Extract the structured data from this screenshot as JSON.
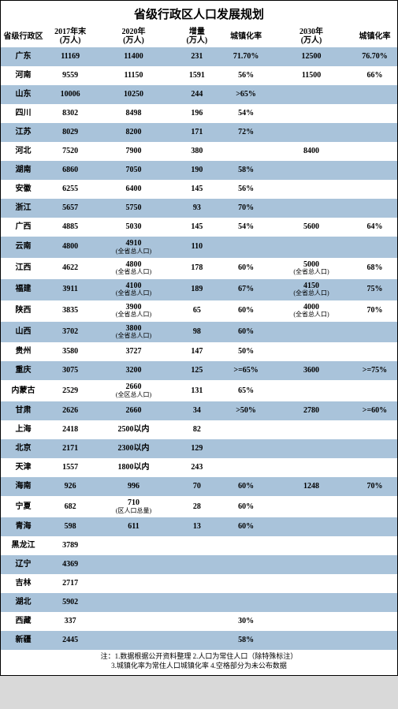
{
  "title": "省级行政区人口发展规划",
  "columns": [
    "省级行政区",
    "2017年末\n(万人)",
    "2020年\n(万人)",
    "增量\n(万人)",
    "城镇化率",
    "2030年\n(万人)",
    "城镇化率"
  ],
  "sub_note": "(全省总人口)",
  "sub_note_district": "(区人口总量)",
  "rows": [
    {
      "r": "广东",
      "c1": "11169",
      "c2": "11400",
      "c2s": "",
      "c3": "231",
      "c4": "71.70%",
      "c5": "12500",
      "c5s": "",
      "c6": "76.70%"
    },
    {
      "r": "河南",
      "c1": "9559",
      "c2": "11150",
      "c2s": "",
      "c3": "1591",
      "c4": "56%",
      "c5": "11500",
      "c5s": "",
      "c6": "66%"
    },
    {
      "r": "山东",
      "c1": "10006",
      "c2": "10250",
      "c2s": "",
      "c3": "244",
      "c4": ">65%",
      "c5": "",
      "c5s": "",
      "c6": ""
    },
    {
      "r": "四川",
      "c1": "8302",
      "c2": "8498",
      "c2s": "",
      "c3": "196",
      "c4": "54%",
      "c5": "",
      "c5s": "",
      "c6": ""
    },
    {
      "r": "江苏",
      "c1": "8029",
      "c2": "8200",
      "c2s": "",
      "c3": "171",
      "c4": "72%",
      "c5": "",
      "c5s": "",
      "c6": ""
    },
    {
      "r": "河北",
      "c1": "7520",
      "c2": "7900",
      "c2s": "",
      "c3": "380",
      "c4": "",
      "c5": "8400",
      "c5s": "",
      "c6": ""
    },
    {
      "r": "湖南",
      "c1": "6860",
      "c2": "7050",
      "c2s": "",
      "c3": "190",
      "c4": "58%",
      "c5": "",
      "c5s": "",
      "c6": ""
    },
    {
      "r": "安徽",
      "c1": "6255",
      "c2": "6400",
      "c2s": "",
      "c3": "145",
      "c4": "56%",
      "c5": "",
      "c5s": "",
      "c6": ""
    },
    {
      "r": "浙江",
      "c1": "5657",
      "c2": "5750",
      "c2s": "",
      "c3": "93",
      "c4": "70%",
      "c5": "",
      "c5s": "",
      "c6": ""
    },
    {
      "r": "广西",
      "c1": "4885",
      "c2": "5030",
      "c2s": "",
      "c3": "145",
      "c4": "54%",
      "c5": "5600",
      "c5s": "",
      "c6": "64%"
    },
    {
      "r": "云南",
      "c1": "4800",
      "c2": "4910",
      "c2s": "(全省总人口)",
      "c3": "110",
      "c4": "",
      "c5": "",
      "c5s": "",
      "c6": ""
    },
    {
      "r": "江西",
      "c1": "4622",
      "c2": "4800",
      "c2s": "(全省总人口)",
      "c3": "178",
      "c4": "60%",
      "c5": "5000",
      "c5s": "(全省总人口)",
      "c6": "68%"
    },
    {
      "r": "福建",
      "c1": "3911",
      "c2": "4100",
      "c2s": "(全省总人口)",
      "c3": "189",
      "c4": "67%",
      "c5": "4150",
      "c5s": "(全省总人口)",
      "c6": "75%"
    },
    {
      "r": "陕西",
      "c1": "3835",
      "c2": "3900",
      "c2s": "(全省总人口)",
      "c3": "65",
      "c4": "60%",
      "c5": "4000",
      "c5s": "(全省总人口)",
      "c6": "70%"
    },
    {
      "r": "山西",
      "c1": "3702",
      "c2": "3800",
      "c2s": "(全省总人口)",
      "c3": "98",
      "c4": "60%",
      "c5": "",
      "c5s": "",
      "c6": ""
    },
    {
      "r": "贵州",
      "c1": "3580",
      "c2": "3727",
      "c2s": "",
      "c3": "147",
      "c4": "50%",
      "c5": "",
      "c5s": "",
      "c6": ""
    },
    {
      "r": "重庆",
      "c1": "3075",
      "c2": "3200",
      "c2s": "",
      "c3": "125",
      "c4": ">=65%",
      "c5": "3600",
      "c5s": "",
      "c6": ">=75%"
    },
    {
      "r": "内蒙古",
      "c1": "2529",
      "c2": "2660",
      "c2s": "(全区总人口)",
      "c3": "131",
      "c4": "65%",
      "c5": "",
      "c5s": "",
      "c6": ""
    },
    {
      "r": "甘肃",
      "c1": "2626",
      "c2": "2660",
      "c2s": "",
      "c3": "34",
      "c4": ">50%",
      "c5": "2780",
      "c5s": "",
      "c6": ">=60%"
    },
    {
      "r": "上海",
      "c1": "2418",
      "c2": "2500以内",
      "c2s": "",
      "c3": "82",
      "c4": "",
      "c5": "",
      "c5s": "",
      "c6": ""
    },
    {
      "r": "北京",
      "c1": "2171",
      "c2": "2300以内",
      "c2s": "",
      "c3": "129",
      "c4": "",
      "c5": "",
      "c5s": "",
      "c6": ""
    },
    {
      "r": "天津",
      "c1": "1557",
      "c2": "1800以内",
      "c2s": "",
      "c3": "243",
      "c4": "",
      "c5": "",
      "c5s": "",
      "c6": ""
    },
    {
      "r": "海南",
      "c1": "926",
      "c2": "996",
      "c2s": "",
      "c3": "70",
      "c4": "60%",
      "c5": "1248",
      "c5s": "",
      "c6": "70%"
    },
    {
      "r": "宁夏",
      "c1": "682",
      "c2": "710",
      "c2s": "(区人口总量)",
      "c3": "28",
      "c4": "60%",
      "c5": "",
      "c5s": "",
      "c6": ""
    },
    {
      "r": "青海",
      "c1": "598",
      "c2": "611",
      "c2s": "",
      "c3": "13",
      "c4": "60%",
      "c5": "",
      "c5s": "",
      "c6": ""
    },
    {
      "r": "黑龙江",
      "c1": "3789",
      "c2": "",
      "c2s": "",
      "c3": "",
      "c4": "",
      "c5": "",
      "c5s": "",
      "c6": ""
    },
    {
      "r": "辽宁",
      "c1": "4369",
      "c2": "",
      "c2s": "",
      "c3": "",
      "c4": "",
      "c5": "",
      "c5s": "",
      "c6": ""
    },
    {
      "r": "吉林",
      "c1": "2717",
      "c2": "",
      "c2s": "",
      "c3": "",
      "c4": "",
      "c5": "",
      "c5s": "",
      "c6": ""
    },
    {
      "r": "湖北",
      "c1": "5902",
      "c2": "",
      "c2s": "",
      "c3": "",
      "c4": "",
      "c5": "",
      "c5s": "",
      "c6": ""
    },
    {
      "r": "西藏",
      "c1": "337",
      "c2": "",
      "c2s": "",
      "c3": "",
      "c4": "30%",
      "c5": "",
      "c5s": "",
      "c6": ""
    },
    {
      "r": "新疆",
      "c1": "2445",
      "c2": "",
      "c2s": "",
      "c3": "",
      "c4": "58%",
      "c5": "",
      "c5s": "",
      "c6": ""
    }
  ],
  "footnote_line1": "注：1.数据根据公开资料整理 2.人口为常住人口（除特殊标注）",
  "footnote_line2": "3.城镇化率为常住人口城镇化率 4.空格部分为未公布数据"
}
